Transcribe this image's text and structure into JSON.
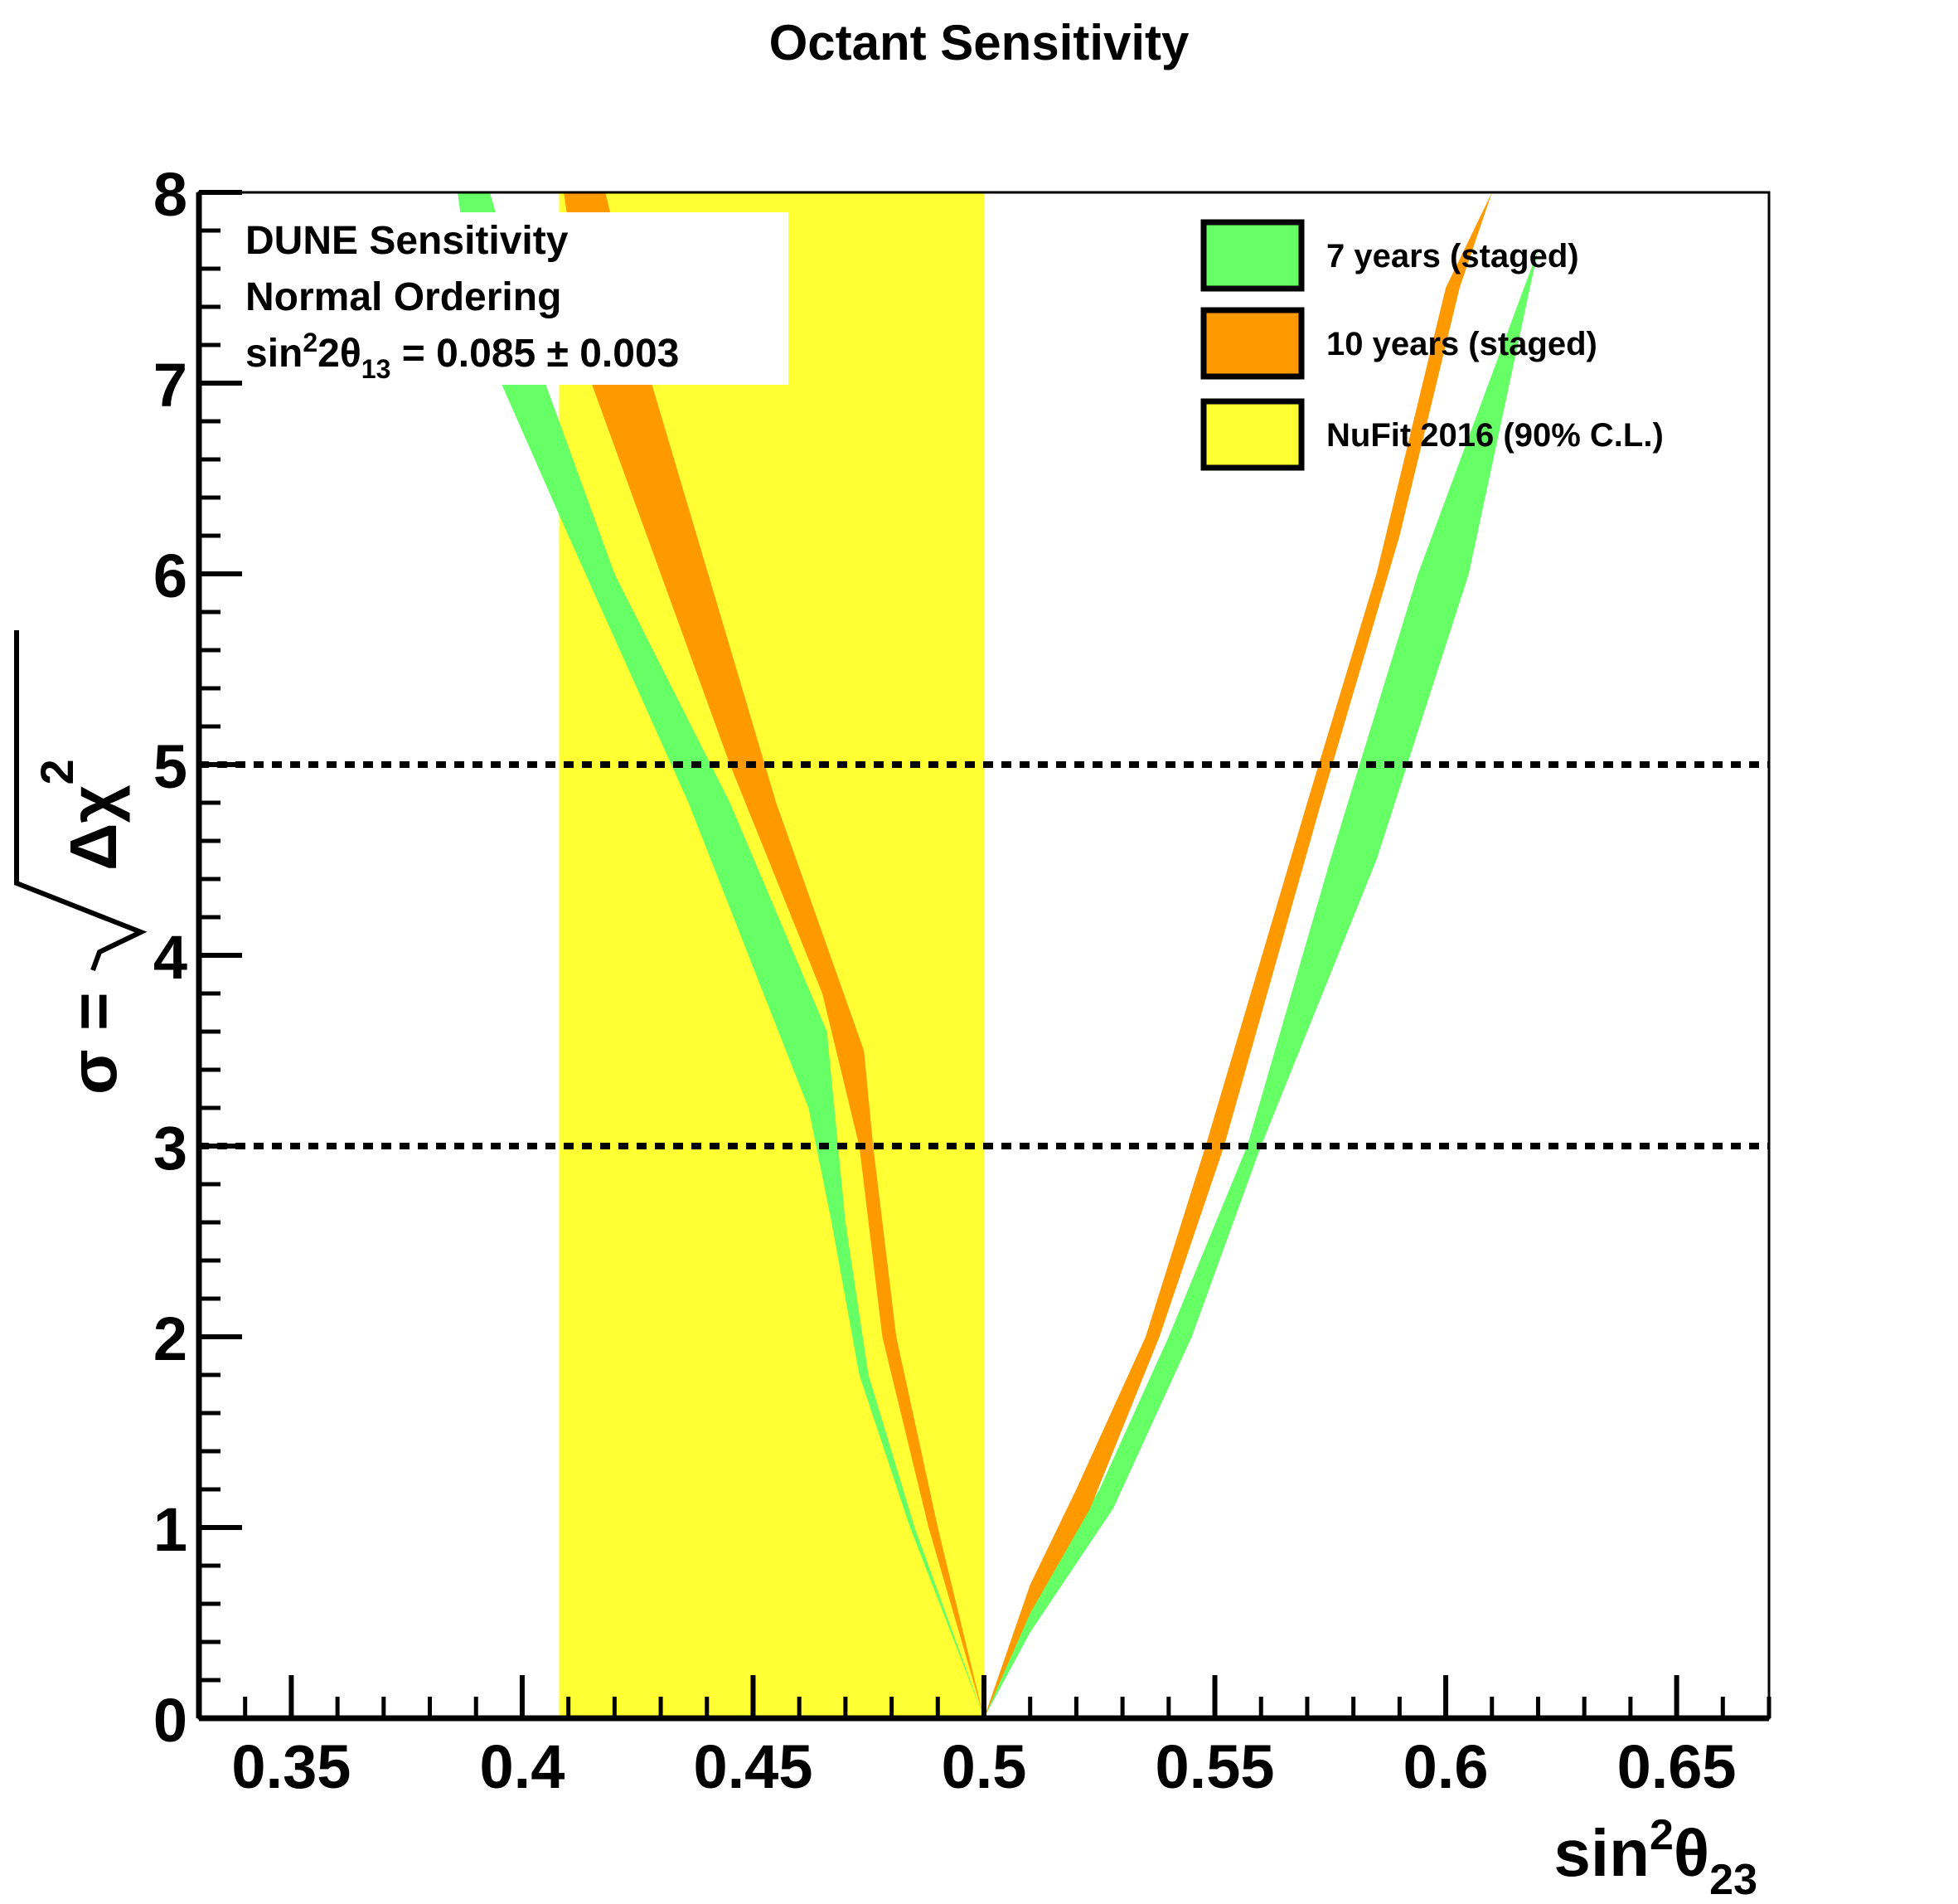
{
  "chart_data": {
    "type": "area",
    "title": "Octant Sensitivity",
    "xlabel": {
      "base": "sin",
      "sup": "2",
      "theta": "θ",
      "sub": "23"
    },
    "ylabel": {
      "prefix": "σ =",
      "rad": "Δχ",
      "sup": "2"
    },
    "xlim": [
      0.33,
      0.67
    ],
    "ylim": [
      0,
      8
    ],
    "x_ticks": [
      {
        "v": 0.35,
        "label": "0.35"
      },
      {
        "v": 0.4,
        "label": "0.4"
      },
      {
        "v": 0.45,
        "label": "0.45"
      },
      {
        "v": 0.5,
        "label": "0.5"
      },
      {
        "v": 0.55,
        "label": "0.55"
      },
      {
        "v": 0.6,
        "label": "0.6"
      },
      {
        "v": 0.65,
        "label": "0.65"
      }
    ],
    "y_ticks": [
      {
        "v": 0,
        "label": "0"
      },
      {
        "v": 1,
        "label": "1"
      },
      {
        "v": 2,
        "label": "2"
      },
      {
        "v": 3,
        "label": "3"
      },
      {
        "v": 4,
        "label": "4"
      },
      {
        "v": 5,
        "label": "5"
      },
      {
        "v": 6,
        "label": "6"
      },
      {
        "v": 7,
        "label": "7"
      },
      {
        "v": 8,
        "label": "8"
      }
    ],
    "reference_lines": [
      3,
      5
    ],
    "info_box": {
      "line1": "DUNE Sensitivity",
      "line2": "Normal Ordering",
      "line3": {
        "pre": "sin",
        "sup": "2",
        "mid": "2θ",
        "sub": "13",
        "post": " = 0.085 ± 0.003"
      }
    },
    "legend_position": "top-right",
    "series": [
      {
        "name": "NuFit 2016 (90% C.L.)",
        "kind": "vband",
        "color": "#ffff33",
        "x_range": [
          0.408,
          0.5
        ]
      },
      {
        "name": "7 years (staged)",
        "kind": "band",
        "color": "#66ff66",
        "left_upper": [
          [
            0.5,
            0
          ],
          [
            0.485,
            1.0
          ],
          [
            0.475,
            1.8
          ],
          [
            0.47,
            2.6
          ],
          [
            0.466,
            3.6
          ],
          [
            0.445,
            4.8
          ],
          [
            0.42,
            6.0
          ],
          [
            0.405,
            7.0
          ],
          [
            0.393,
            8.0
          ]
        ],
        "left_lower": [
          [
            0.5,
            0
          ],
          [
            0.484,
            1.0
          ],
          [
            0.473,
            1.8
          ],
          [
            0.467,
            2.6
          ],
          [
            0.462,
            3.2
          ],
          [
            0.436,
            4.8
          ],
          [
            0.41,
            6.2
          ],
          [
            0.39,
            7.3
          ],
          [
            0.386,
            8.0
          ]
        ],
        "right_upper": [
          [
            0.5,
            0
          ],
          [
            0.51,
            0.6
          ],
          [
            0.525,
            1.2
          ],
          [
            0.54,
            2.0
          ],
          [
            0.557,
            3.0
          ],
          [
            0.575,
            4.5
          ],
          [
            0.594,
            6.0
          ],
          [
            0.62,
            7.7
          ],
          [
            0.63,
            8.0
          ]
        ],
        "right_lower": [
          [
            0.5,
            0
          ],
          [
            0.51,
            0.45
          ],
          [
            0.528,
            1.1
          ],
          [
            0.545,
            2.0
          ],
          [
            0.56,
            3.0
          ],
          [
            0.585,
            4.5
          ],
          [
            0.605,
            6.0
          ],
          [
            0.62,
            7.7
          ],
          [
            0.63,
            8.0
          ]
        ]
      },
      {
        "name": "10 years (staged)",
        "kind": "band",
        "color": "#ff9900",
        "left_upper": [
          [
            0.5,
            0
          ],
          [
            0.49,
            1.0
          ],
          [
            0.481,
            2.0
          ],
          [
            0.476,
            3.0
          ],
          [
            0.474,
            3.5
          ],
          [
            0.455,
            4.8
          ],
          [
            0.428,
            7.0
          ],
          [
            0.418,
            8.0
          ]
        ],
        "left_lower": [
          [
            0.5,
            0
          ],
          [
            0.488,
            1.0
          ],
          [
            0.478,
            2.0
          ],
          [
            0.473,
            3.0
          ],
          [
            0.465,
            3.8
          ],
          [
            0.445,
            5.0
          ],
          [
            0.415,
            7.0
          ],
          [
            0.409,
            8.0
          ]
        ],
        "right_upper": [
          [
            0.5,
            0
          ],
          [
            0.51,
            0.7
          ],
          [
            0.52,
            1.2
          ],
          [
            0.535,
            2.0
          ],
          [
            0.548,
            3.0
          ],
          [
            0.57,
            4.8
          ],
          [
            0.585,
            6.0
          ],
          [
            0.6,
            7.5
          ],
          [
            0.61,
            8.0
          ]
        ],
        "right_lower": [
          [
            0.5,
            0
          ],
          [
            0.51,
            0.55
          ],
          [
            0.523,
            1.1
          ],
          [
            0.538,
            2.0
          ],
          [
            0.552,
            3.0
          ],
          [
            0.573,
            4.8
          ],
          [
            0.59,
            6.2
          ],
          [
            0.603,
            7.5
          ],
          [
            0.61,
            8.0
          ]
        ]
      }
    ]
  }
}
